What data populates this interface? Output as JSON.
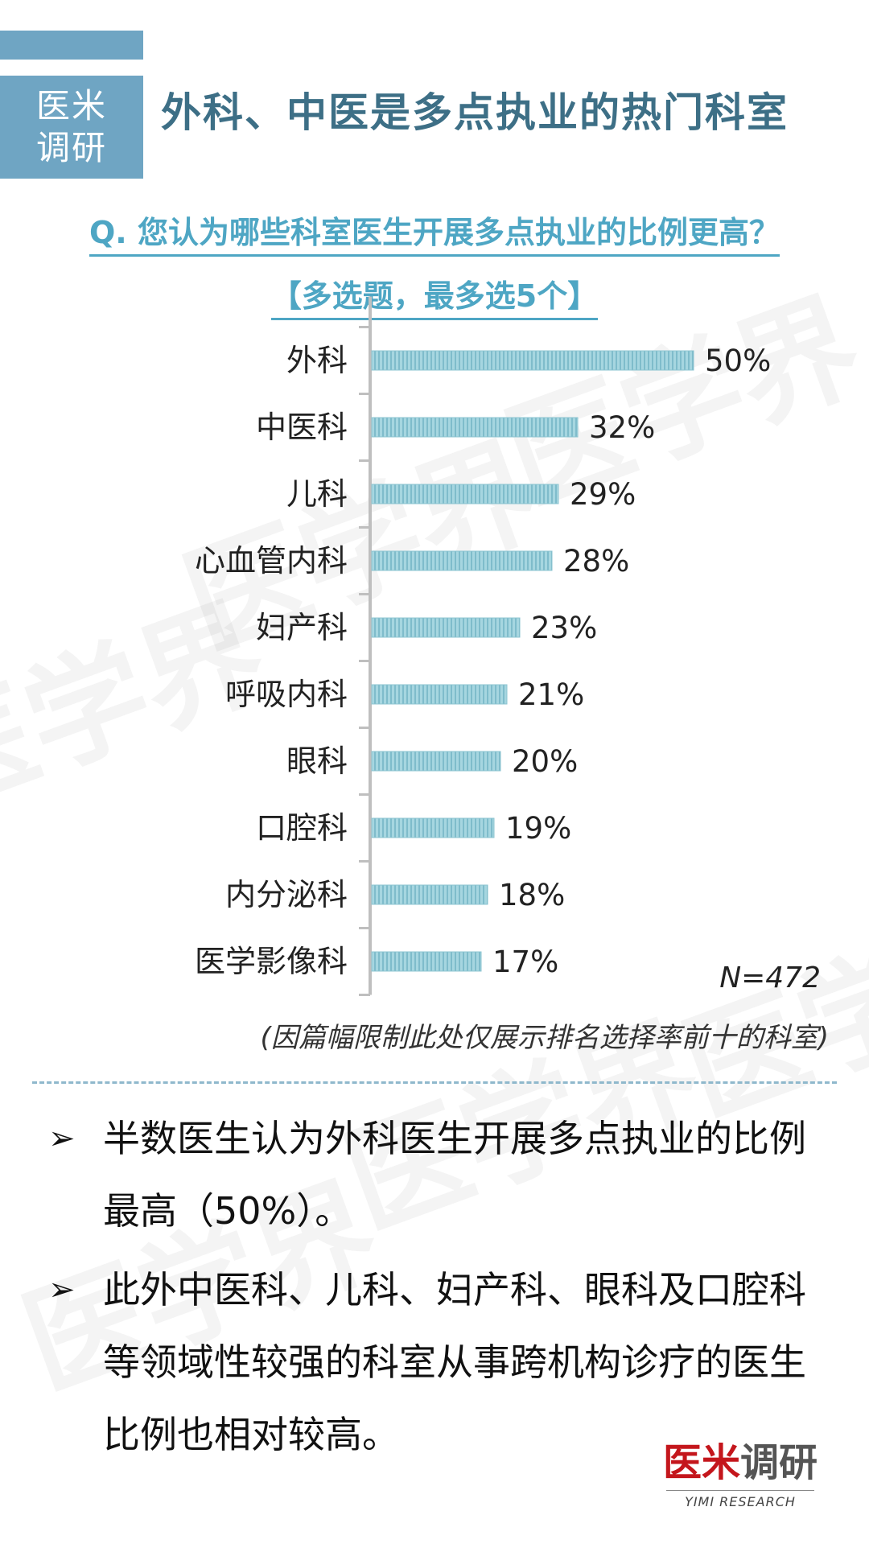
{
  "header": {
    "brand_line1": "医米",
    "brand_line2": "调研",
    "title": "外科、中医是多点执业的热门科室"
  },
  "question": {
    "line1": "Q. 您认为哪些科室医生开展多点执业的比例更高？",
    "line2": "【多选题，最多选5个】"
  },
  "chart_data": {
    "type": "bar",
    "orientation": "horizontal",
    "categories": [
      "外科",
      "中医科",
      "儿科",
      "心血管内科",
      "妇产科",
      "呼吸内科",
      "眼科",
      "口腔科",
      "内分泌科",
      "医学影像科"
    ],
    "values": [
      50,
      32,
      29,
      28,
      23,
      21,
      20,
      19,
      18,
      17
    ],
    "value_labels": [
      "50%",
      "32%",
      "29%",
      "28%",
      "23%",
      "21%",
      "20%",
      "19%",
      "18%",
      "17%"
    ],
    "xlim": [
      0,
      50
    ],
    "grid": false,
    "bar_color": "#9fd2dd"
  },
  "sample_size": "N=472",
  "note": "(因篇幅限制此处仅展示排名选择率前十的科室)",
  "bullets": [
    "半数医生认为外科医生开展多点执业的比例最高（50%）。",
    "此外中医科、儿科、妇产科、眼科及口腔科等领域性较强的科室从事跨机构诊疗的医生比例也相对较高。"
  ],
  "watermark_text": "医学界",
  "footer_logo": {
    "red_text": "医米",
    "gray_text": "调研",
    "sub_text": "YIMI RESEARCH"
  },
  "colors": {
    "brand": "#6fa5c3",
    "title": "#3d6f86",
    "question": "#4ea6c4",
    "logo_red": "#c4161c"
  }
}
